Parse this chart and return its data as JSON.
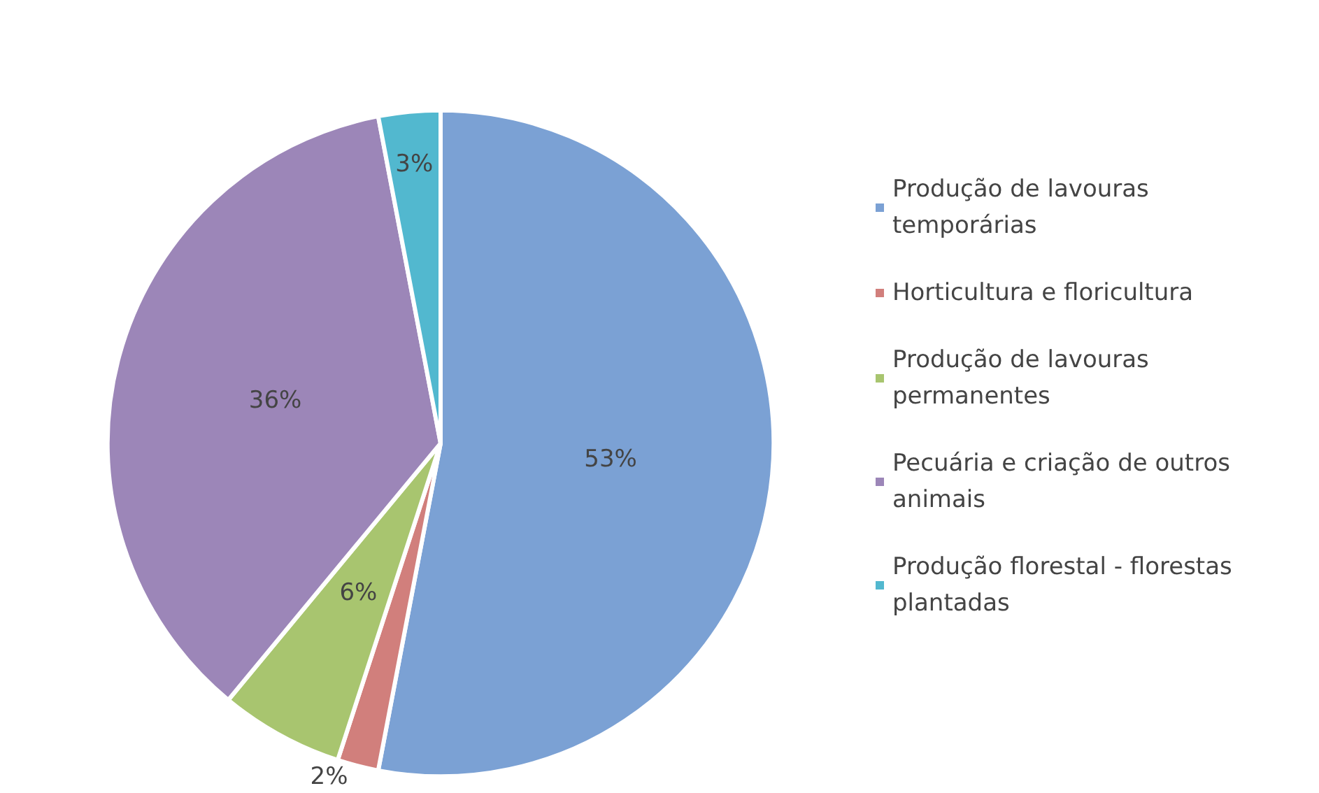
{
  "chart_data": {
    "type": "pie",
    "categories": [
      "Produção de lavouras temporárias",
      "Horticultura e floricultura",
      "Produção de lavouras permanentes",
      "Pecuária e criação de outros animais",
      "Produção florestal - florestas plantadas"
    ],
    "values": [
      53,
      2,
      6,
      36,
      3
    ],
    "colors": [
      "#7ba1d4",
      "#d17f7c",
      "#a8c56f",
      "#9c86b8",
      "#52b8cf"
    ],
    "value_labels": [
      "53%",
      "2%",
      "6%",
      "36%",
      "3%"
    ],
    "legend": "right"
  }
}
